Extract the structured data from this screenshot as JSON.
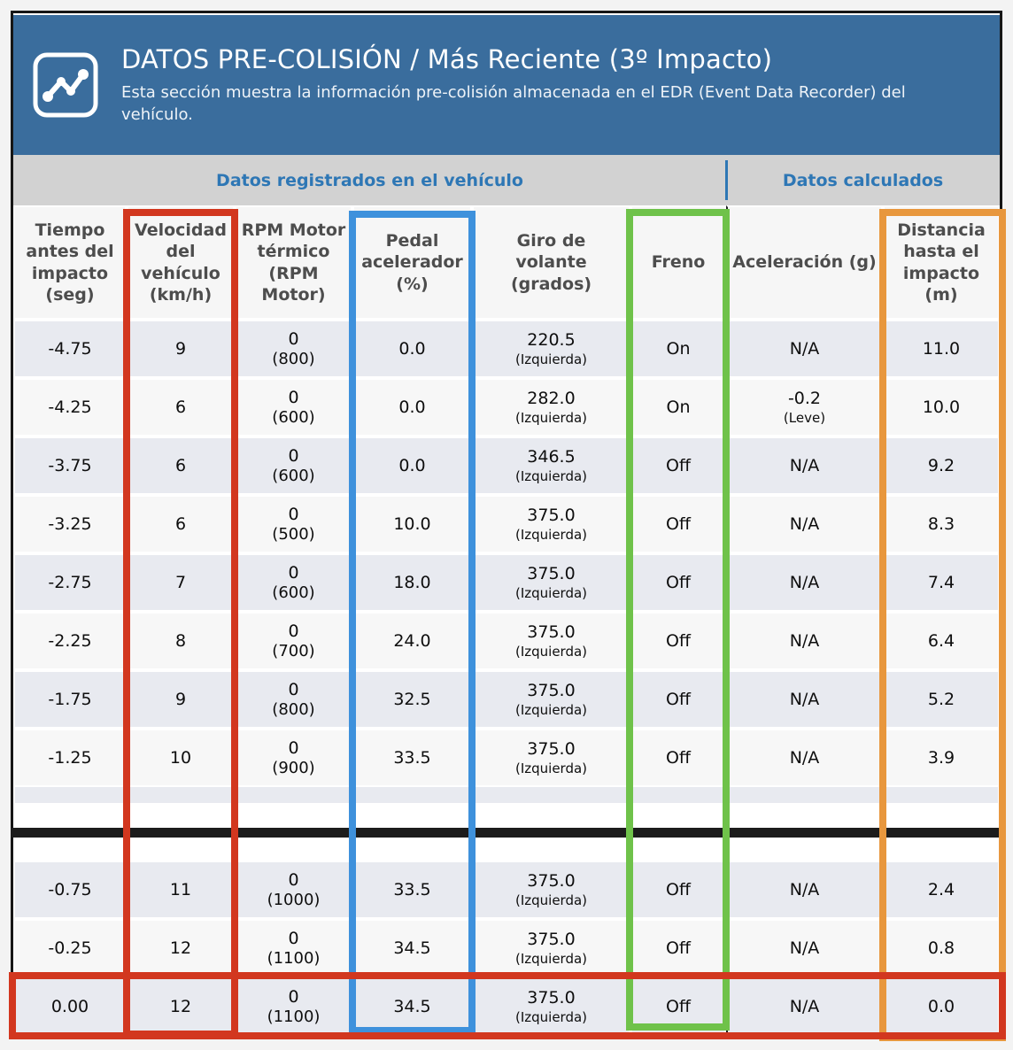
{
  "report": {
    "icon": "line-chart-icon",
    "title": "DATOS PRE-COLISIÓN / Más Reciente (3º Impacto)",
    "subtitle": "Esta sección muestra la información pre-colisión almacenada en el EDR (Event Data Recorder) del vehículo.",
    "banner_color": "#3a6d9d"
  },
  "group_header": {
    "recorded": "Datos registrados en el vehículo",
    "calculated": "Datos calculados",
    "text_color": "#2e77b5"
  },
  "table": {
    "columns": [
      {
        "key": "tiempo",
        "label": "Tiempo antes del impacto (seg)"
      },
      {
        "key": "velocidad",
        "label": "Velocidad del vehículo (km/h)"
      },
      {
        "key": "rpm",
        "label": "RPM Motor térmico (RPM Motor)"
      },
      {
        "key": "pedal",
        "label": "Pedal acelerador (%)"
      },
      {
        "key": "giro",
        "label": "Giro de volante (grados)"
      },
      {
        "key": "freno",
        "label": "Freno"
      },
      {
        "key": "aceleracion",
        "label": "Aceleración (g)"
      },
      {
        "key": "distancia",
        "label": "Distancia hasta el impacto (m)"
      }
    ],
    "row_groups": [
      [
        {
          "cells": [
            {
              "main": "-4.75"
            },
            {
              "main": "9"
            },
            {
              "main": "0",
              "sub": "(800)"
            },
            {
              "main": "0.0"
            },
            {
              "main": "220.5",
              "sub": "(Izquierda)"
            },
            {
              "main": "On"
            },
            {
              "main": "N/A"
            },
            {
              "main": "11.0"
            }
          ]
        },
        {
          "cells": [
            {
              "main": "-4.25"
            },
            {
              "main": "6"
            },
            {
              "main": "0",
              "sub": "(600)"
            },
            {
              "main": "0.0"
            },
            {
              "main": "282.0",
              "sub": "(Izquierda)"
            },
            {
              "main": "On"
            },
            {
              "main": "-0.2",
              "sub": "(Leve)"
            },
            {
              "main": "10.0"
            }
          ]
        },
        {
          "cells": [
            {
              "main": "-3.75"
            },
            {
              "main": "6"
            },
            {
              "main": "0",
              "sub": "(600)"
            },
            {
              "main": "0.0"
            },
            {
              "main": "346.5",
              "sub": "(Izquierda)"
            },
            {
              "main": "Off"
            },
            {
              "main": "N/A"
            },
            {
              "main": "9.2"
            }
          ]
        },
        {
          "cells": [
            {
              "main": "-3.25"
            },
            {
              "main": "6"
            },
            {
              "main": "0",
              "sub": "(500)"
            },
            {
              "main": "10.0"
            },
            {
              "main": "375.0",
              "sub": "(Izquierda)"
            },
            {
              "main": "Off"
            },
            {
              "main": "N/A"
            },
            {
              "main": "8.3"
            }
          ]
        },
        {
          "cells": [
            {
              "main": "-2.75"
            },
            {
              "main": "7"
            },
            {
              "main": "0",
              "sub": "(600)"
            },
            {
              "main": "18.0"
            },
            {
              "main": "375.0",
              "sub": "(Izquierda)"
            },
            {
              "main": "Off"
            },
            {
              "main": "N/A"
            },
            {
              "main": "7.4"
            }
          ]
        },
        {
          "cells": [
            {
              "main": "-2.25"
            },
            {
              "main": "8"
            },
            {
              "main": "0",
              "sub": "(700)"
            },
            {
              "main": "24.0"
            },
            {
              "main": "375.0",
              "sub": "(Izquierda)"
            },
            {
              "main": "Off"
            },
            {
              "main": "N/A"
            },
            {
              "main": "6.4"
            }
          ]
        },
        {
          "cells": [
            {
              "main": "-1.75"
            },
            {
              "main": "9"
            },
            {
              "main": "0",
              "sub": "(800)"
            },
            {
              "main": "32.5"
            },
            {
              "main": "375.0",
              "sub": "(Izquierda)"
            },
            {
              "main": "Off"
            },
            {
              "main": "N/A"
            },
            {
              "main": "5.2"
            }
          ]
        },
        {
          "cells": [
            {
              "main": "-1.25"
            },
            {
              "main": "10"
            },
            {
              "main": "0",
              "sub": "(900)"
            },
            {
              "main": "33.5"
            },
            {
              "main": "375.0",
              "sub": "(Izquierda)"
            },
            {
              "main": "Off"
            },
            {
              "main": "N/A"
            },
            {
              "main": "3.9"
            }
          ]
        }
      ],
      [
        {
          "cells": [
            {
              "main": "-0.75"
            },
            {
              "main": "11"
            },
            {
              "main": "0",
              "sub": "(1000)"
            },
            {
              "main": "33.5"
            },
            {
              "main": "375.0",
              "sub": "(Izquierda)"
            },
            {
              "main": "Off"
            },
            {
              "main": "N/A"
            },
            {
              "main": "2.4"
            }
          ]
        },
        {
          "cells": [
            {
              "main": "-0.25"
            },
            {
              "main": "12"
            },
            {
              "main": "0",
              "sub": "(1100)"
            },
            {
              "main": "34.5"
            },
            {
              "main": "375.0",
              "sub": "(Izquierda)"
            },
            {
              "main": "Off"
            },
            {
              "main": "N/A"
            },
            {
              "main": "0.8"
            }
          ]
        },
        {
          "cells": [
            {
              "main": "0.00"
            },
            {
              "main": "12"
            },
            {
              "main": "0",
              "sub": "(1100)"
            },
            {
              "main": "34.5"
            },
            {
              "main": "375.0",
              "sub": "(Izquierda)"
            },
            {
              "main": "Off"
            },
            {
              "main": "N/A"
            },
            {
              "main": "0.0"
            }
          ]
        }
      ]
    ]
  },
  "annotations": {
    "velocidad_column_box_color": "#d2371f",
    "pedal_column_box_color": "#3e91dc",
    "freno_column_box_color": "#6fc24a",
    "distancia_column_box_color": "#e8973d",
    "impact_row_box_color": "#d2371f"
  },
  "colors": {
    "row_dark": "#e8eaf0",
    "row_light": "#f7f7f7",
    "group_header_bg": "#d2d2d2",
    "separator_bar": "#1c1c1c"
  }
}
